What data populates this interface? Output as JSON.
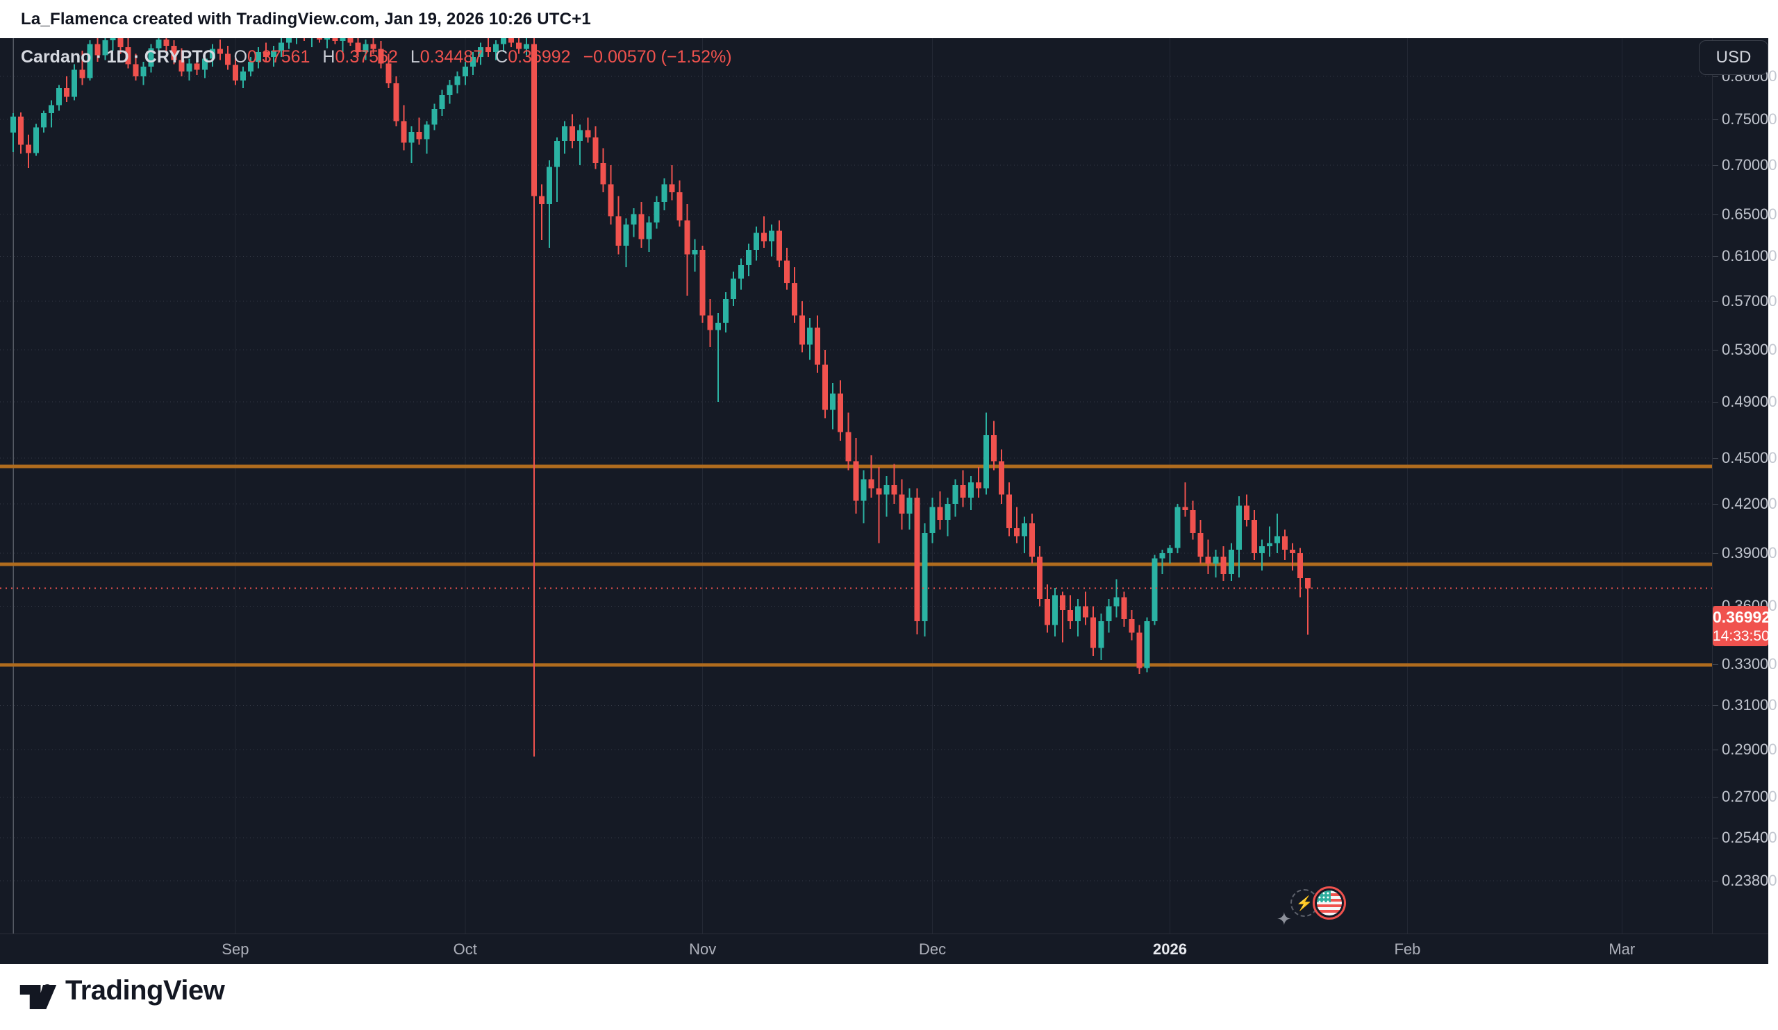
{
  "header": {
    "attribution": "La_Flamenca created with TradingView.com, Jan 19, 2026 10:26 UTC+1"
  },
  "legend": {
    "title": "Cardano · 1D · CRYPTO",
    "fields": [
      {
        "k": "O",
        "v": "0.37561"
      },
      {
        "k": "H",
        "v": "0.37562"
      },
      {
        "k": "L",
        "v": "0.34487"
      },
      {
        "k": "C",
        "v": "0.36992"
      }
    ],
    "change": "−0.00570 (−1.52%)"
  },
  "price_axis": {
    "currency_button": "USD",
    "ticks": [
      {
        "label": "0.80000",
        "value": 0.8
      },
      {
        "label": "0.75000",
        "value": 0.75
      },
      {
        "label": "0.70000",
        "value": 0.7
      },
      {
        "label": "0.65000",
        "value": 0.65
      },
      {
        "label": "0.61000",
        "value": 0.61
      },
      {
        "label": "0.57000",
        "value": 0.57
      },
      {
        "label": "0.53000",
        "value": 0.53
      },
      {
        "label": "0.49000",
        "value": 0.49
      },
      {
        "label": "0.45000",
        "value": 0.45
      },
      {
        "label": "0.42000",
        "value": 0.42
      },
      {
        "label": "0.39000",
        "value": 0.39
      },
      {
        "label": "0.36000",
        "value": 0.36
      },
      {
        "label": "0.33000",
        "value": 0.33
      },
      {
        "label": "0.31000",
        "value": 0.31
      },
      {
        "label": "0.29000",
        "value": 0.29
      },
      {
        "label": "0.27000",
        "value": 0.27
      },
      {
        "label": "0.25400",
        "value": 0.254
      },
      {
        "label": "0.23800",
        "value": 0.238
      }
    ]
  },
  "time_axis": {
    "ticks": [
      {
        "label": "Sep",
        "bar": 29,
        "major": false
      },
      {
        "label": "Oct",
        "bar": 59,
        "major": false
      },
      {
        "label": "Nov",
        "bar": 90,
        "major": false
      },
      {
        "label": "Dec",
        "bar": 120,
        "major": false
      },
      {
        "label": "2026",
        "bar": 151,
        "major": true
      },
      {
        "label": "Feb",
        "bar": 182,
        "major": false
      },
      {
        "label": "Mar",
        "bar": 210,
        "major": false
      }
    ]
  },
  "current": {
    "price": "0.36992",
    "value": 0.36992,
    "countdown": "14:33:50"
  },
  "colors": {
    "bg": "#151a25",
    "up": "#2bb3a3",
    "down": "#f0524e",
    "level": "#b06c1e",
    "grid_h": "#353a46",
    "grid_v": "#232834",
    "pane_edge": "#8b8f98"
  },
  "footer": {
    "brand": "TradingView"
  },
  "chart_data": {
    "type": "candlestick",
    "title": "Cardano / U.S. Dollar, 1D, CRYPTO",
    "interval": "1D",
    "start_date": "2025-08-03",
    "end_date": "2026-01-19",
    "legend_position": "top-left",
    "grid": true,
    "scale": {
      "type": "log",
      "price_max": 0.8476,
      "price_min": 0.2198
    },
    "levels": [
      0.4445,
      0.3835,
      0.3295
    ],
    "xlabel": "",
    "ylabel": "USD",
    "candles": [
      [
        0.735,
        0.757,
        0.714,
        0.753
      ],
      [
        0.753,
        0.758,
        0.712,
        0.722
      ],
      [
        0.722,
        0.733,
        0.697,
        0.713
      ],
      [
        0.713,
        0.745,
        0.71,
        0.741
      ],
      [
        0.741,
        0.76,
        0.735,
        0.757
      ],
      [
        0.757,
        0.772,
        0.741,
        0.766
      ],
      [
        0.766,
        0.79,
        0.76,
        0.786
      ],
      [
        0.786,
        0.8,
        0.77,
        0.776
      ],
      [
        0.776,
        0.815,
        0.772,
        0.808
      ],
      [
        0.808,
        0.832,
        0.79,
        0.798
      ],
      [
        0.798,
        0.845,
        0.795,
        0.84
      ],
      [
        0.84,
        0.852,
        0.818,
        0.826
      ],
      [
        0.826,
        0.85,
        0.82,
        0.845
      ],
      [
        0.845,
        0.858,
        0.832,
        0.852
      ],
      [
        0.852,
        0.858,
        0.828,
        0.836
      ],
      [
        0.836,
        0.848,
        0.81,
        0.815
      ],
      [
        0.815,
        0.828,
        0.795,
        0.8
      ],
      [
        0.8,
        0.818,
        0.79,
        0.812
      ],
      [
        0.812,
        0.84,
        0.805,
        0.835
      ],
      [
        0.835,
        0.852,
        0.822,
        0.846
      ],
      [
        0.846,
        0.856,
        0.83,
        0.838
      ],
      [
        0.838,
        0.845,
        0.815,
        0.82
      ],
      [
        0.82,
        0.835,
        0.8,
        0.806
      ],
      [
        0.806,
        0.822,
        0.795,
        0.816
      ],
      [
        0.816,
        0.83,
        0.802,
        0.808
      ],
      [
        0.808,
        0.826,
        0.798,
        0.822
      ],
      [
        0.822,
        0.84,
        0.812,
        0.834
      ],
      [
        0.834,
        0.846,
        0.82,
        0.828
      ],
      [
        0.828,
        0.838,
        0.808,
        0.814
      ],
      [
        0.814,
        0.824,
        0.79,
        0.795
      ],
      [
        0.795,
        0.812,
        0.786,
        0.806
      ],
      [
        0.806,
        0.824,
        0.8,
        0.818
      ],
      [
        0.818,
        0.836,
        0.81,
        0.83
      ],
      [
        0.83,
        0.842,
        0.818,
        0.824
      ],
      [
        0.824,
        0.838,
        0.812,
        0.832
      ],
      [
        0.832,
        0.848,
        0.824,
        0.842
      ],
      [
        0.842,
        0.856,
        0.834,
        0.85
      ],
      [
        0.85,
        0.862,
        0.84,
        0.856
      ],
      [
        0.856,
        0.866,
        0.844,
        0.848
      ],
      [
        0.848,
        0.86,
        0.836,
        0.854
      ],
      [
        0.854,
        0.864,
        0.842,
        0.846
      ],
      [
        0.846,
        0.858,
        0.835,
        0.852
      ],
      [
        0.852,
        0.862,
        0.84,
        0.844
      ],
      [
        0.844,
        0.856,
        0.83,
        0.85
      ],
      [
        0.85,
        0.86,
        0.838,
        0.842
      ],
      [
        0.842,
        0.852,
        0.824,
        0.83
      ],
      [
        0.83,
        0.846,
        0.82,
        0.84
      ],
      [
        0.84,
        0.854,
        0.828,
        0.834
      ],
      [
        0.834,
        0.844,
        0.81,
        0.816
      ],
      [
        0.816,
        0.828,
        0.786,
        0.792
      ],
      [
        0.792,
        0.8,
        0.742,
        0.748
      ],
      [
        0.748,
        0.766,
        0.716,
        0.724
      ],
      [
        0.724,
        0.742,
        0.702,
        0.736
      ],
      [
        0.736,
        0.752,
        0.722,
        0.728
      ],
      [
        0.728,
        0.748,
        0.712,
        0.744
      ],
      [
        0.744,
        0.768,
        0.738,
        0.762
      ],
      [
        0.762,
        0.784,
        0.754,
        0.778
      ],
      [
        0.778,
        0.796,
        0.768,
        0.79
      ],
      [
        0.79,
        0.806,
        0.78,
        0.8
      ],
      [
        0.8,
        0.818,
        0.79,
        0.812
      ],
      [
        0.812,
        0.83,
        0.802,
        0.824
      ],
      [
        0.824,
        0.842,
        0.814,
        0.836
      ],
      [
        0.836,
        0.85,
        0.824,
        0.83
      ],
      [
        0.83,
        0.845,
        0.82,
        0.84
      ],
      [
        0.84,
        0.855,
        0.83,
        0.848
      ],
      [
        0.848,
        0.858,
        0.836,
        0.842
      ],
      [
        0.842,
        0.852,
        0.828,
        0.834
      ],
      [
        0.834,
        0.848,
        0.826,
        0.84
      ],
      [
        0.84,
        0.848,
        0.287,
        0.668
      ],
      [
        0.668,
        0.68,
        0.625,
        0.66
      ],
      [
        0.66,
        0.705,
        0.618,
        0.698
      ],
      [
        0.698,
        0.73,
        0.662,
        0.726
      ],
      [
        0.726,
        0.748,
        0.712,
        0.742
      ],
      [
        0.742,
        0.756,
        0.718,
        0.726
      ],
      [
        0.726,
        0.744,
        0.7,
        0.738
      ],
      [
        0.738,
        0.752,
        0.724,
        0.73
      ],
      [
        0.73,
        0.742,
        0.696,
        0.702
      ],
      [
        0.702,
        0.718,
        0.672,
        0.68
      ],
      [
        0.68,
        0.7,
        0.64,
        0.648
      ],
      [
        0.648,
        0.668,
        0.612,
        0.62
      ],
      [
        0.62,
        0.646,
        0.6,
        0.64
      ],
      [
        0.64,
        0.656,
        0.628,
        0.65
      ],
      [
        0.65,
        0.662,
        0.618,
        0.626
      ],
      [
        0.626,
        0.648,
        0.614,
        0.642
      ],
      [
        0.642,
        0.668,
        0.636,
        0.662
      ],
      [
        0.662,
        0.686,
        0.654,
        0.68
      ],
      [
        0.68,
        0.7,
        0.664,
        0.672
      ],
      [
        0.672,
        0.684,
        0.638,
        0.644
      ],
      [
        0.644,
        0.66,
        0.575,
        0.612
      ],
      [
        0.612,
        0.626,
        0.596,
        0.616
      ],
      [
        0.616,
        0.62,
        0.552,
        0.558
      ],
      [
        0.558,
        0.572,
        0.532,
        0.546
      ],
      [
        0.546,
        0.56,
        0.49,
        0.552
      ],
      [
        0.552,
        0.578,
        0.544,
        0.572
      ],
      [
        0.572,
        0.596,
        0.566,
        0.59
      ],
      [
        0.59,
        0.608,
        0.58,
        0.602
      ],
      [
        0.602,
        0.622,
        0.592,
        0.616
      ],
      [
        0.616,
        0.638,
        0.606,
        0.632
      ],
      [
        0.632,
        0.648,
        0.618,
        0.624
      ],
      [
        0.624,
        0.64,
        0.61,
        0.634
      ],
      [
        0.634,
        0.644,
        0.6,
        0.606
      ],
      [
        0.606,
        0.618,
        0.58,
        0.586
      ],
      [
        0.586,
        0.6,
        0.552,
        0.558
      ],
      [
        0.558,
        0.57,
        0.528,
        0.534
      ],
      [
        0.534,
        0.556,
        0.522,
        0.548
      ],
      [
        0.548,
        0.558,
        0.512,
        0.518
      ],
      [
        0.518,
        0.53,
        0.478,
        0.484
      ],
      [
        0.484,
        0.504,
        0.47,
        0.496
      ],
      [
        0.496,
        0.506,
        0.462,
        0.468
      ],
      [
        0.468,
        0.482,
        0.442,
        0.448
      ],
      [
        0.448,
        0.464,
        0.414,
        0.422
      ],
      [
        0.422,
        0.442,
        0.408,
        0.436
      ],
      [
        0.436,
        0.452,
        0.424,
        0.43
      ],
      [
        0.43,
        0.444,
        0.396,
        0.426
      ],
      [
        0.426,
        0.438,
        0.412,
        0.432
      ],
      [
        0.432,
        0.446,
        0.42,
        0.426
      ],
      [
        0.426,
        0.436,
        0.404,
        0.414
      ],
      [
        0.414,
        0.43,
        0.404,
        0.424
      ],
      [
        0.424,
        0.43,
        0.345,
        0.352
      ],
      [
        0.352,
        0.408,
        0.344,
        0.402
      ],
      [
        0.402,
        0.424,
        0.396,
        0.418
      ],
      [
        0.418,
        0.428,
        0.404,
        0.41
      ],
      [
        0.41,
        0.424,
        0.4,
        0.42
      ],
      [
        0.42,
        0.436,
        0.412,
        0.432
      ],
      [
        0.432,
        0.442,
        0.418,
        0.424
      ],
      [
        0.424,
        0.438,
        0.416,
        0.434
      ],
      [
        0.434,
        0.444,
        0.424,
        0.43
      ],
      [
        0.43,
        0.482,
        0.426,
        0.466
      ],
      [
        0.466,
        0.476,
        0.442,
        0.448
      ],
      [
        0.448,
        0.456,
        0.42,
        0.426
      ],
      [
        0.426,
        0.434,
        0.4,
        0.405
      ],
      [
        0.405,
        0.418,
        0.396,
        0.4
      ],
      [
        0.4,
        0.412,
        0.39,
        0.408
      ],
      [
        0.408,
        0.414,
        0.384,
        0.388
      ],
      [
        0.388,
        0.394,
        0.36,
        0.364
      ],
      [
        0.364,
        0.372,
        0.346,
        0.35
      ],
      [
        0.35,
        0.37,
        0.344,
        0.366
      ],
      [
        0.366,
        0.368,
        0.341,
        0.358
      ],
      [
        0.358,
        0.366,
        0.348,
        0.352
      ],
      [
        0.352,
        0.364,
        0.344,
        0.36
      ],
      [
        0.36,
        0.368,
        0.35,
        0.354
      ],
      [
        0.354,
        0.36,
        0.334,
        0.338
      ],
      [
        0.338,
        0.356,
        0.332,
        0.352
      ],
      [
        0.352,
        0.364,
        0.346,
        0.36
      ],
      [
        0.36,
        0.375,
        0.354,
        0.365
      ],
      [
        0.365,
        0.368,
        0.349,
        0.353
      ],
      [
        0.353,
        0.358,
        0.342,
        0.346
      ],
      [
        0.346,
        0.35,
        0.325,
        0.328
      ],
      [
        0.328,
        0.354,
        0.326,
        0.352
      ],
      [
        0.352,
        0.389,
        0.35,
        0.387
      ],
      [
        0.387,
        0.392,
        0.378,
        0.39
      ],
      [
        0.39,
        0.395,
        0.384,
        0.393
      ],
      [
        0.393,
        0.42,
        0.39,
        0.418
      ],
      [
        0.418,
        0.434,
        0.412,
        0.416
      ],
      [
        0.416,
        0.422,
        0.398,
        0.402
      ],
      [
        0.402,
        0.41,
        0.384,
        0.388
      ],
      [
        0.388,
        0.398,
        0.378,
        0.384
      ],
      [
        0.384,
        0.392,
        0.376,
        0.388
      ],
      [
        0.388,
        0.394,
        0.374,
        0.378
      ],
      [
        0.378,
        0.396,
        0.374,
        0.392
      ],
      [
        0.392,
        0.425,
        0.376,
        0.419
      ],
      [
        0.419,
        0.426,
        0.406,
        0.41
      ],
      [
        0.41,
        0.416,
        0.386,
        0.39
      ],
      [
        0.39,
        0.398,
        0.38,
        0.394
      ],
      [
        0.394,
        0.406,
        0.388,
        0.396
      ],
      [
        0.396,
        0.414,
        0.39,
        0.4
      ],
      [
        0.4,
        0.404,
        0.386,
        0.392
      ],
      [
        0.392,
        0.396,
        0.38,
        0.39
      ],
      [
        0.39,
        0.393,
        0.365,
        0.3756
      ],
      [
        0.37561,
        0.37562,
        0.34487,
        0.36992
      ]
    ]
  }
}
